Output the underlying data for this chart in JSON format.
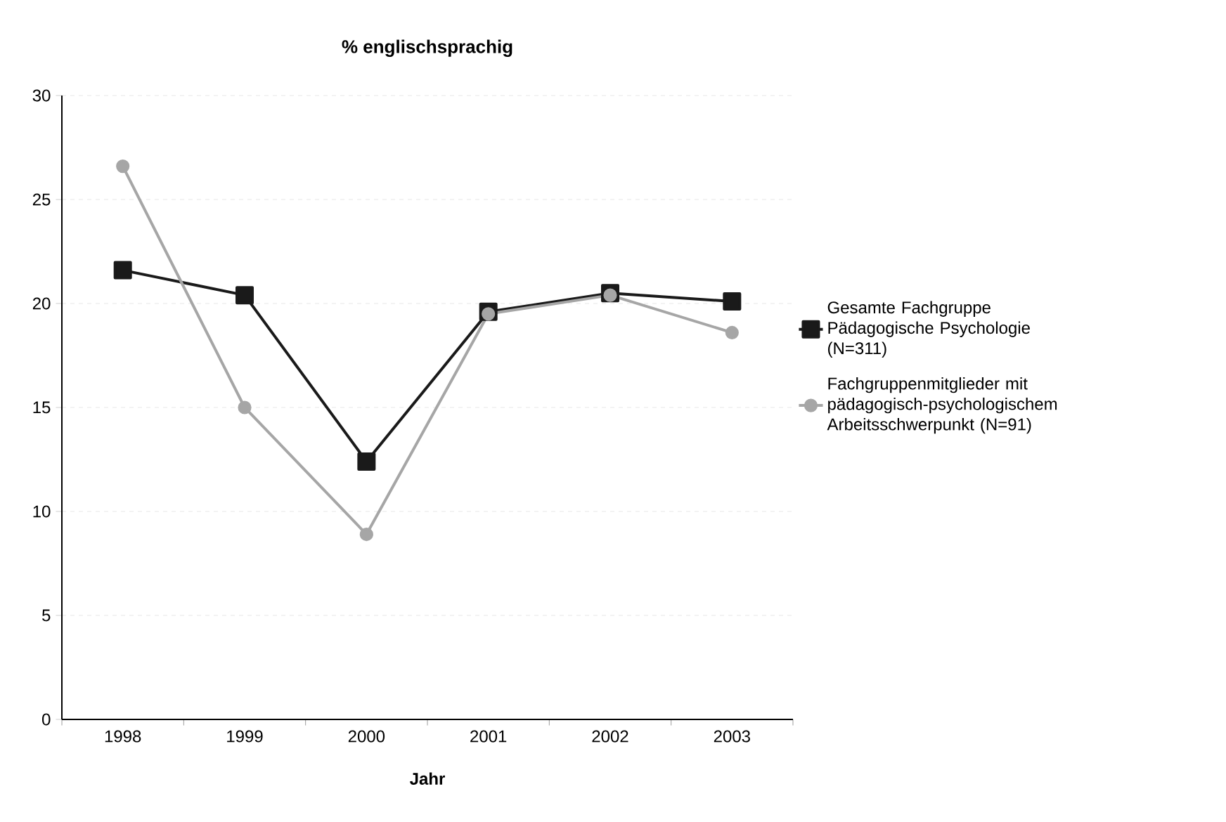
{
  "chart_data": {
    "type": "line",
    "title": "% englischsprachig",
    "xlabel": "Jahr",
    "categories": [
      "1998",
      "1999",
      "2000",
      "2001",
      "2002",
      "2003"
    ],
    "series": [
      {
        "name": "Gesamte Fachgruppe Pädagogische Psychologie (N=311)",
        "color": "#1a1a1a",
        "marker": "square",
        "values": [
          21.6,
          20.4,
          12.4,
          19.6,
          20.5,
          20.1
        ]
      },
      {
        "name": "Fachgruppenmitglieder mit pädagogisch-psychologischem Arbeitsschwerpunkt (N=91)",
        "color": "#a6a6a6",
        "marker": "circle",
        "values": [
          26.6,
          15.0,
          8.9,
          19.5,
          20.4,
          18.6
        ]
      }
    ],
    "ylim": [
      0,
      30
    ],
    "yticks": [
      0,
      5,
      10,
      15,
      20,
      25,
      30
    ],
    "grid": "y",
    "legend": "right",
    "line_style": "solid"
  }
}
